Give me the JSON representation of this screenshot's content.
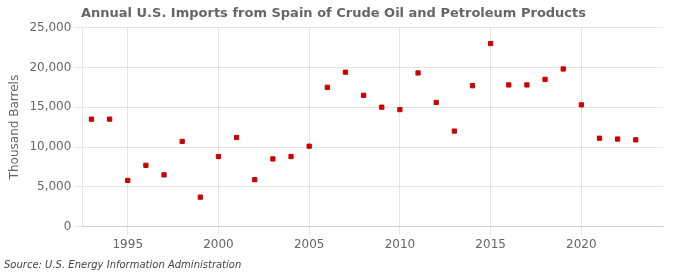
{
  "chart_data": {
    "type": "scatter",
    "title": "Annual U.S. Imports from Spain of Crude Oil and Petroleum Products",
    "ylabel": "Thousand Barrels",
    "source": "Source: U.S. Energy Information Administration",
    "x": [
      1993,
      1994,
      1995,
      1996,
      1997,
      1998,
      1999,
      2000,
      2001,
      2002,
      2003,
      2004,
      2005,
      2006,
      2007,
      2008,
      2009,
      2010,
      2011,
      2012,
      2013,
      2014,
      2015,
      2016,
      2017,
      2018,
      2019,
      2020,
      2021,
      2022,
      2023
    ],
    "values": [
      13500,
      13500,
      5800,
      7700,
      6500,
      10700,
      3700,
      8800,
      11200,
      5900,
      8500,
      8800,
      10100,
      17500,
      19400,
      16500,
      15000,
      14700,
      19300,
      15600,
      12000,
      17700,
      23000,
      17800,
      17800,
      18500,
      19800,
      15300,
      11100,
      11000,
      10900
    ],
    "color": "#cc0000",
    "marker": "square",
    "xlim": [
      1992.5,
      2024.5
    ],
    "xticks": [
      1995,
      2000,
      2005,
      2010,
      2015,
      2020
    ],
    "ylim": [
      0,
      25000
    ],
    "yticks": [
      0,
      {
        "value": 5000,
        "label": "5,000"
      },
      {
        "value": 10000,
        "label": "10,000"
      },
      {
        "value": 15000,
        "label": "15,000"
      },
      {
        "value": 20000,
        "label": "20,000"
      },
      {
        "value": 25000,
        "label": "25,000"
      }
    ],
    "grid": true
  }
}
